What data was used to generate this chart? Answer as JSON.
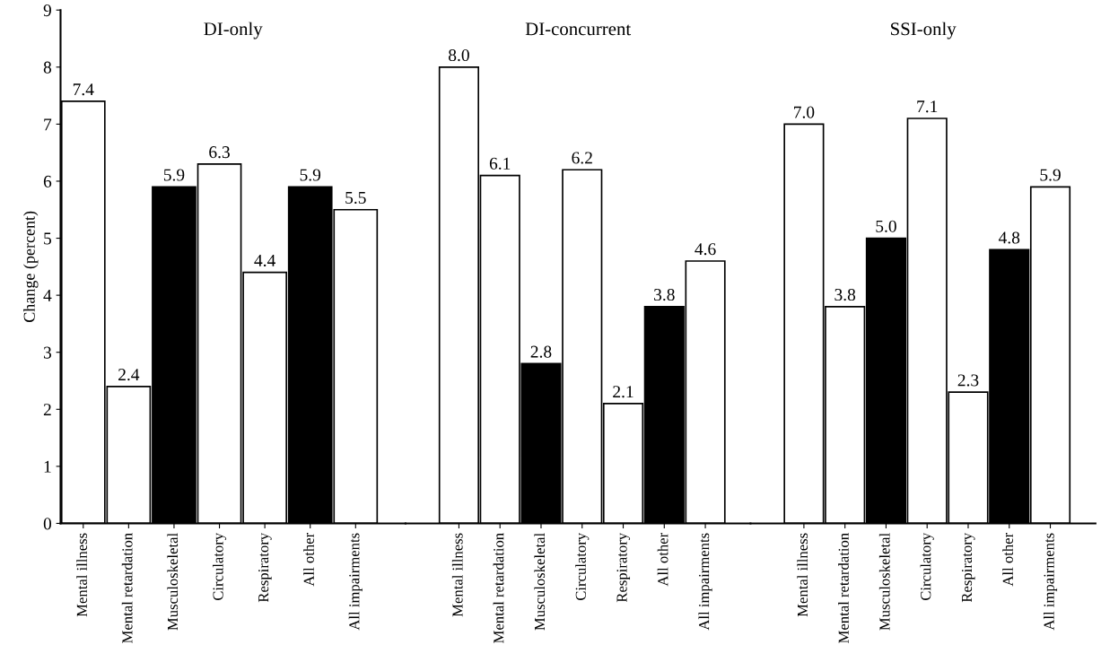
{
  "chart_data": [
    {
      "type": "bar",
      "title": "DI-only",
      "ylabel": "Change (percent)",
      "categories": [
        "Mental illness",
        "Mental retardation",
        "Musculoskeletal",
        "Circulatory",
        "Respiratory",
        "All other",
        "All impairments"
      ],
      "values": [
        7.4,
        2.4,
        5.9,
        6.3,
        4.4,
        5.9,
        5.5
      ],
      "colors": [
        "#ffffff",
        "#ffffff",
        "#000000",
        "#ffffff",
        "#ffffff",
        "#000000",
        "#ffffff"
      ],
      "ylim": [
        0,
        9
      ],
      "yticks": [
        0,
        1,
        2,
        3,
        4,
        5,
        6,
        7,
        8,
        9
      ],
      "data_labels": true,
      "grid": false,
      "legend": false
    },
    {
      "type": "bar",
      "title": "DI-concurrent",
      "categories": [
        "Mental illness",
        "Mental retardation",
        "Musculoskeletal",
        "Circulatory",
        "Respiratory",
        "All other",
        "All impairments"
      ],
      "values": [
        8.0,
        6.1,
        2.8,
        6.2,
        2.1,
        3.8,
        4.6
      ],
      "value_labels": [
        "8.0",
        "6.1",
        "2.8",
        "6.2",
        "2.1",
        "3.8",
        "4.6"
      ],
      "colors": [
        "#ffffff",
        "#ffffff",
        "#000000",
        "#ffffff",
        "#ffffff",
        "#000000",
        "#ffffff"
      ],
      "ylim": [
        0,
        9
      ],
      "tick_labels": "x",
      "grid": false,
      "legend": false
    },
    {
      "type": "bar",
      "title": "SSI-only",
      "categories": [
        "Mental illness",
        "Mental retardation",
        "Musculoskeletal",
        "Circulatory",
        "Respiratory",
        "All other",
        "All impairments"
      ],
      "values": [
        7.0,
        3.8,
        5.0,
        7.1,
        2.3,
        4.8,
        5.9
      ],
      "value_labels": [
        "7.0",
        "3.8",
        "5.0",
        "7.1",
        "2.3",
        "4.8",
        "5.9"
      ],
      "colors": [
        "#ffffff",
        "#ffffff",
        "#000000",
        "#ffffff",
        "#ffffff",
        "#000000",
        "#ffffff"
      ],
      "ylim": [
        0,
        9
      ],
      "tick_labels": "x",
      "grid": false,
      "legend": false
    }
  ]
}
